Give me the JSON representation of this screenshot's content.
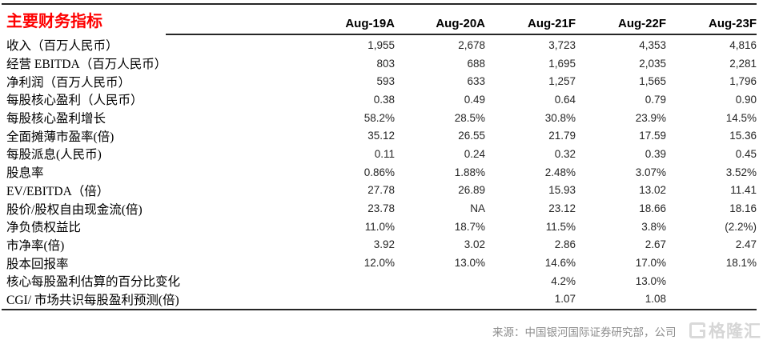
{
  "table": {
    "title": "主要财务指标",
    "columns": [
      "Aug-19A",
      "Aug-20A",
      "Aug-21F",
      "Aug-22F",
      "Aug-23F"
    ],
    "rows": [
      {
        "label": "收入（百万人民币）",
        "values": [
          "1,955",
          "2,678",
          "3,723",
          "4,353",
          "4,816"
        ]
      },
      {
        "label": "经营 EBITDA（百万人民币）",
        "values": [
          "803",
          "688",
          "1,695",
          "2,035",
          "2,281"
        ]
      },
      {
        "label": "净利润（百万人民币）",
        "values": [
          "593",
          "633",
          "1,257",
          "1,565",
          "1,796"
        ]
      },
      {
        "label": "每股核心盈利（人民币）",
        "values": [
          "0.38",
          "0.49",
          "0.64",
          "0.79",
          "0.90"
        ]
      },
      {
        "label": "每股核心盈利增长",
        "values": [
          "58.2%",
          "28.5%",
          "30.8%",
          "23.9%",
          "14.5%"
        ]
      },
      {
        "label": "全面摊薄市盈率(倍)",
        "values": [
          "35.12",
          "26.55",
          "21.79",
          "17.59",
          "15.36"
        ]
      },
      {
        "label": "每股派息(人民币)",
        "values": [
          "0.11",
          "0.24",
          "0.32",
          "0.39",
          "0.45"
        ]
      },
      {
        "label": "股息率",
        "values": [
          "0.86%",
          "1.88%",
          "2.48%",
          "3.07%",
          "3.52%"
        ]
      },
      {
        "label": "EV/EBITDA（倍）",
        "values": [
          "27.78",
          "26.89",
          "15.93",
          "13.02",
          "11.41"
        ]
      },
      {
        "label": "股价/股权自由现金流(倍)",
        "values": [
          "23.78",
          "NA",
          "23.12",
          "18.66",
          "18.16"
        ]
      },
      {
        "label": "净负债权益比",
        "values": [
          "11.0%",
          "18.7%",
          "11.5%",
          "3.8%",
          "(2.2%)"
        ]
      },
      {
        "label": "市净率(倍)",
        "values": [
          "3.92",
          "3.02",
          "2.86",
          "2.67",
          "2.47"
        ]
      },
      {
        "label": "股本回报率",
        "values": [
          "12.0%",
          "13.0%",
          "14.6%",
          "17.0%",
          "18.1%"
        ]
      },
      {
        "label": "核心每股盈利估算的百分比变化",
        "values": [
          "",
          "",
          "4.2%",
          "13.0%",
          ""
        ]
      },
      {
        "label": "CGI/ 市场共识每股盈利预测(倍)",
        "values": [
          "",
          "",
          "1.07",
          "1.08",
          ""
        ]
      }
    ]
  },
  "footer": {
    "source": "来源：中国银河国际证券研究部，公司",
    "watermark_text": "格隆汇"
  },
  "colors": {
    "title_red": "#fe0000",
    "rule_black": "#262626",
    "footer_gray": "#8e8e8e",
    "watermark_gray": "#d6d6d6"
  }
}
